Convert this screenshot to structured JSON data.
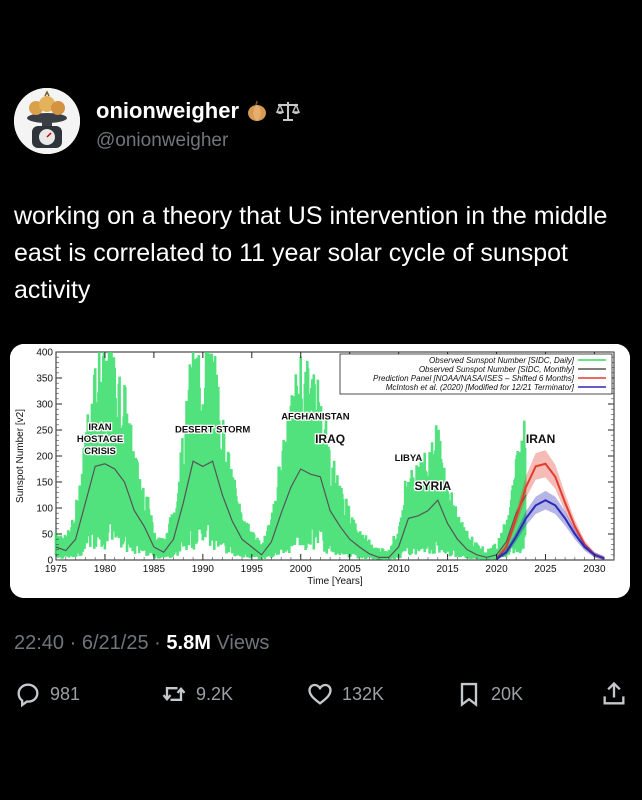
{
  "user": {
    "display_name": "onionweigher",
    "handle": "@onionweigher",
    "badges": [
      "onion-emoji-icon",
      "scales-emoji-icon"
    ]
  },
  "tweet": {
    "text": "working on a theory that US intervention in the middle east is correlated to 11 year solar cycle of sunspot activity"
  },
  "meta": {
    "time": "22:40",
    "date": "6/21/25",
    "views": "5.8M",
    "views_label": "Views",
    "sep": "·"
  },
  "actions": {
    "replies": "981",
    "reposts": "9.2K",
    "likes": "132K",
    "bookmarks": "20K"
  },
  "colors": {
    "observed_daily": "#33dd66",
    "observed_monthly": "#555555",
    "prediction_panel": "#e23b2e",
    "mcintosh": "#2a2ab8",
    "muted": "#71767b"
  },
  "chart_data": {
    "type": "line",
    "ylabel": "Sunspot Number [v2]",
    "xlabel": "Time [Years]",
    "xlim": [
      1975,
      2032
    ],
    "ylim": [
      0,
      400
    ],
    "x_ticks": [
      "1975",
      "1980",
      "1985",
      "1990",
      "1995",
      "2000",
      "2005",
      "2010",
      "2015",
      "2020",
      "2025",
      "2030"
    ],
    "y_ticks": [
      "0",
      "50",
      "100",
      "150",
      "200",
      "250",
      "300",
      "350",
      "400"
    ],
    "legend": [
      "Observed Sunspot Number [SIDC, Daily]",
      "Observed Sunspot Number [SIDC, Monthly]",
      "Prediction Panel [NOAA/NASA/ISES – Shifted 6 Months]",
      "McIntosh et al. (2020) [Modified for 12/21 Terminator]"
    ],
    "legend_position": "top-right",
    "annotations": [
      {
        "text": [
          "IRAN",
          "HOSTAGE",
          "CRISIS"
        ],
        "x": 1979.5,
        "y": 250
      },
      {
        "text": [
          "DESERT STORM"
        ],
        "x": 1991,
        "y": 245
      },
      {
        "text": [
          "AFGHANISTAN"
        ],
        "x": 2001.5,
        "y": 270
      },
      {
        "text": [
          "IRAQ"
        ],
        "x": 2003,
        "y": 225
      },
      {
        "text": [
          "LIBYA"
        ],
        "x": 2011,
        "y": 190
      },
      {
        "text": [
          "SYRIA"
        ],
        "x": 2013.5,
        "y": 135
      },
      {
        "text": [
          "IRAN"
        ],
        "x": 2024.5,
        "y": 225
      }
    ],
    "series": [
      {
        "name": "Observed Sunspot Number [SIDC, Monthly]",
        "x": [
          1975,
          1976,
          1977,
          1978,
          1979,
          1980,
          1981,
          1982,
          1983,
          1984,
          1985,
          1986,
          1987,
          1988,
          1989,
          1990,
          1991,
          1992,
          1993,
          1994,
          1995,
          1996,
          1997,
          1998,
          1999,
          2000,
          2001,
          2002,
          2003,
          2004,
          2005,
          2006,
          2007,
          2008,
          2009,
          2010,
          2011,
          2012,
          2013,
          2014,
          2015,
          2016,
          2017,
          2018,
          2019,
          2020,
          2021,
          2022,
          2023
        ],
        "y": [
          25,
          18,
          40,
          110,
          180,
          185,
          175,
          150,
          95,
          65,
          25,
          15,
          40,
          110,
          190,
          180,
          190,
          125,
          75,
          40,
          25,
          10,
          35,
          90,
          140,
          175,
          165,
          160,
          95,
          65,
          40,
          25,
          12,
          5,
          5,
          25,
          80,
          85,
          95,
          115,
          70,
          40,
          20,
          10,
          5,
          10,
          35,
          90,
          125
        ]
      },
      {
        "name": "Prediction Panel [NOAA/NASA/ISES – Shifted 6 Months]",
        "x": [
          2020,
          2021,
          2022,
          2023,
          2024,
          2025,
          2026,
          2027,
          2028,
          2029,
          2030,
          2031
        ],
        "y": [
          2,
          25,
          80,
          140,
          180,
          185,
          160,
          110,
          65,
          30,
          10,
          3
        ]
      },
      {
        "name": "McIntosh et al. (2020) [Modified for 12/21 Terminator]",
        "x": [
          2020,
          2021,
          2022,
          2023,
          2024,
          2025,
          2026,
          2027,
          2028,
          2029,
          2030,
          2031
        ],
        "y": [
          2,
          15,
          45,
          80,
          105,
          115,
          105,
          80,
          50,
          25,
          10,
          3
        ]
      }
    ]
  }
}
